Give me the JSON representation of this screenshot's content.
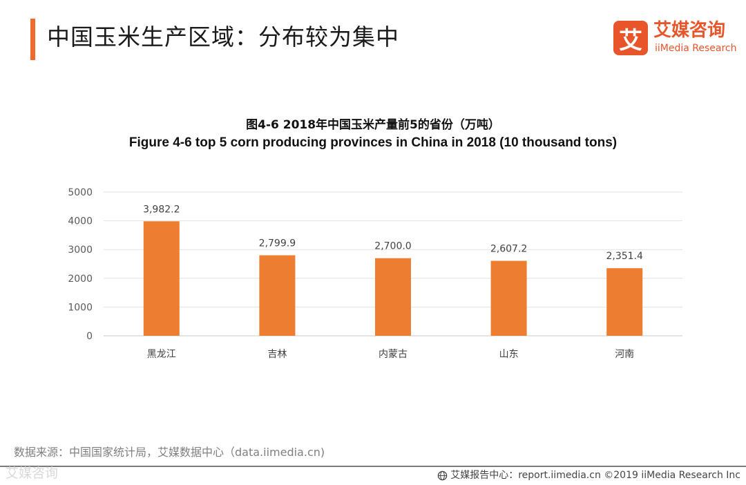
{
  "header": {
    "title": "中国玉米生产区域：分布较为集中",
    "accent_color": "#f06a2e"
  },
  "logo": {
    "mark": "艾",
    "name_cn": "艾媒咨询",
    "name_en": "iiMedia Research",
    "color": "#e8552b"
  },
  "chart_data": {
    "type": "bar",
    "title_cn": "图4-6 2018年中国玉米产量前5的省份（万吨）",
    "title_en": "Figure 4-6 top 5 corn producing provinces in China in 2018 (10 thousand  tons)",
    "categories": [
      "黑龙江",
      "吉林",
      "内蒙古",
      "山东",
      "河南"
    ],
    "values": [
      3982.2,
      2799.9,
      2700.0,
      2607.2,
      2351.4
    ],
    "value_labels": [
      "3,982.2",
      "2,799.9",
      "2,700.0",
      "2,607.2",
      "2,351.4"
    ],
    "ylim": [
      0,
      5000
    ],
    "yticks": [
      "0",
      "1000",
      "2000",
      "3000",
      "4000",
      "5000"
    ],
    "grid": true,
    "bar_color": "#ed7d31"
  },
  "source": "数据来源：中国国家统计局，艾媒数据中心（data.iimedia.cn)",
  "watermark": "艾媒咨询",
  "footer": {
    "text": "艾媒报告中心：report.iimedia.cn ©2019 iiMedia Research Inc"
  }
}
